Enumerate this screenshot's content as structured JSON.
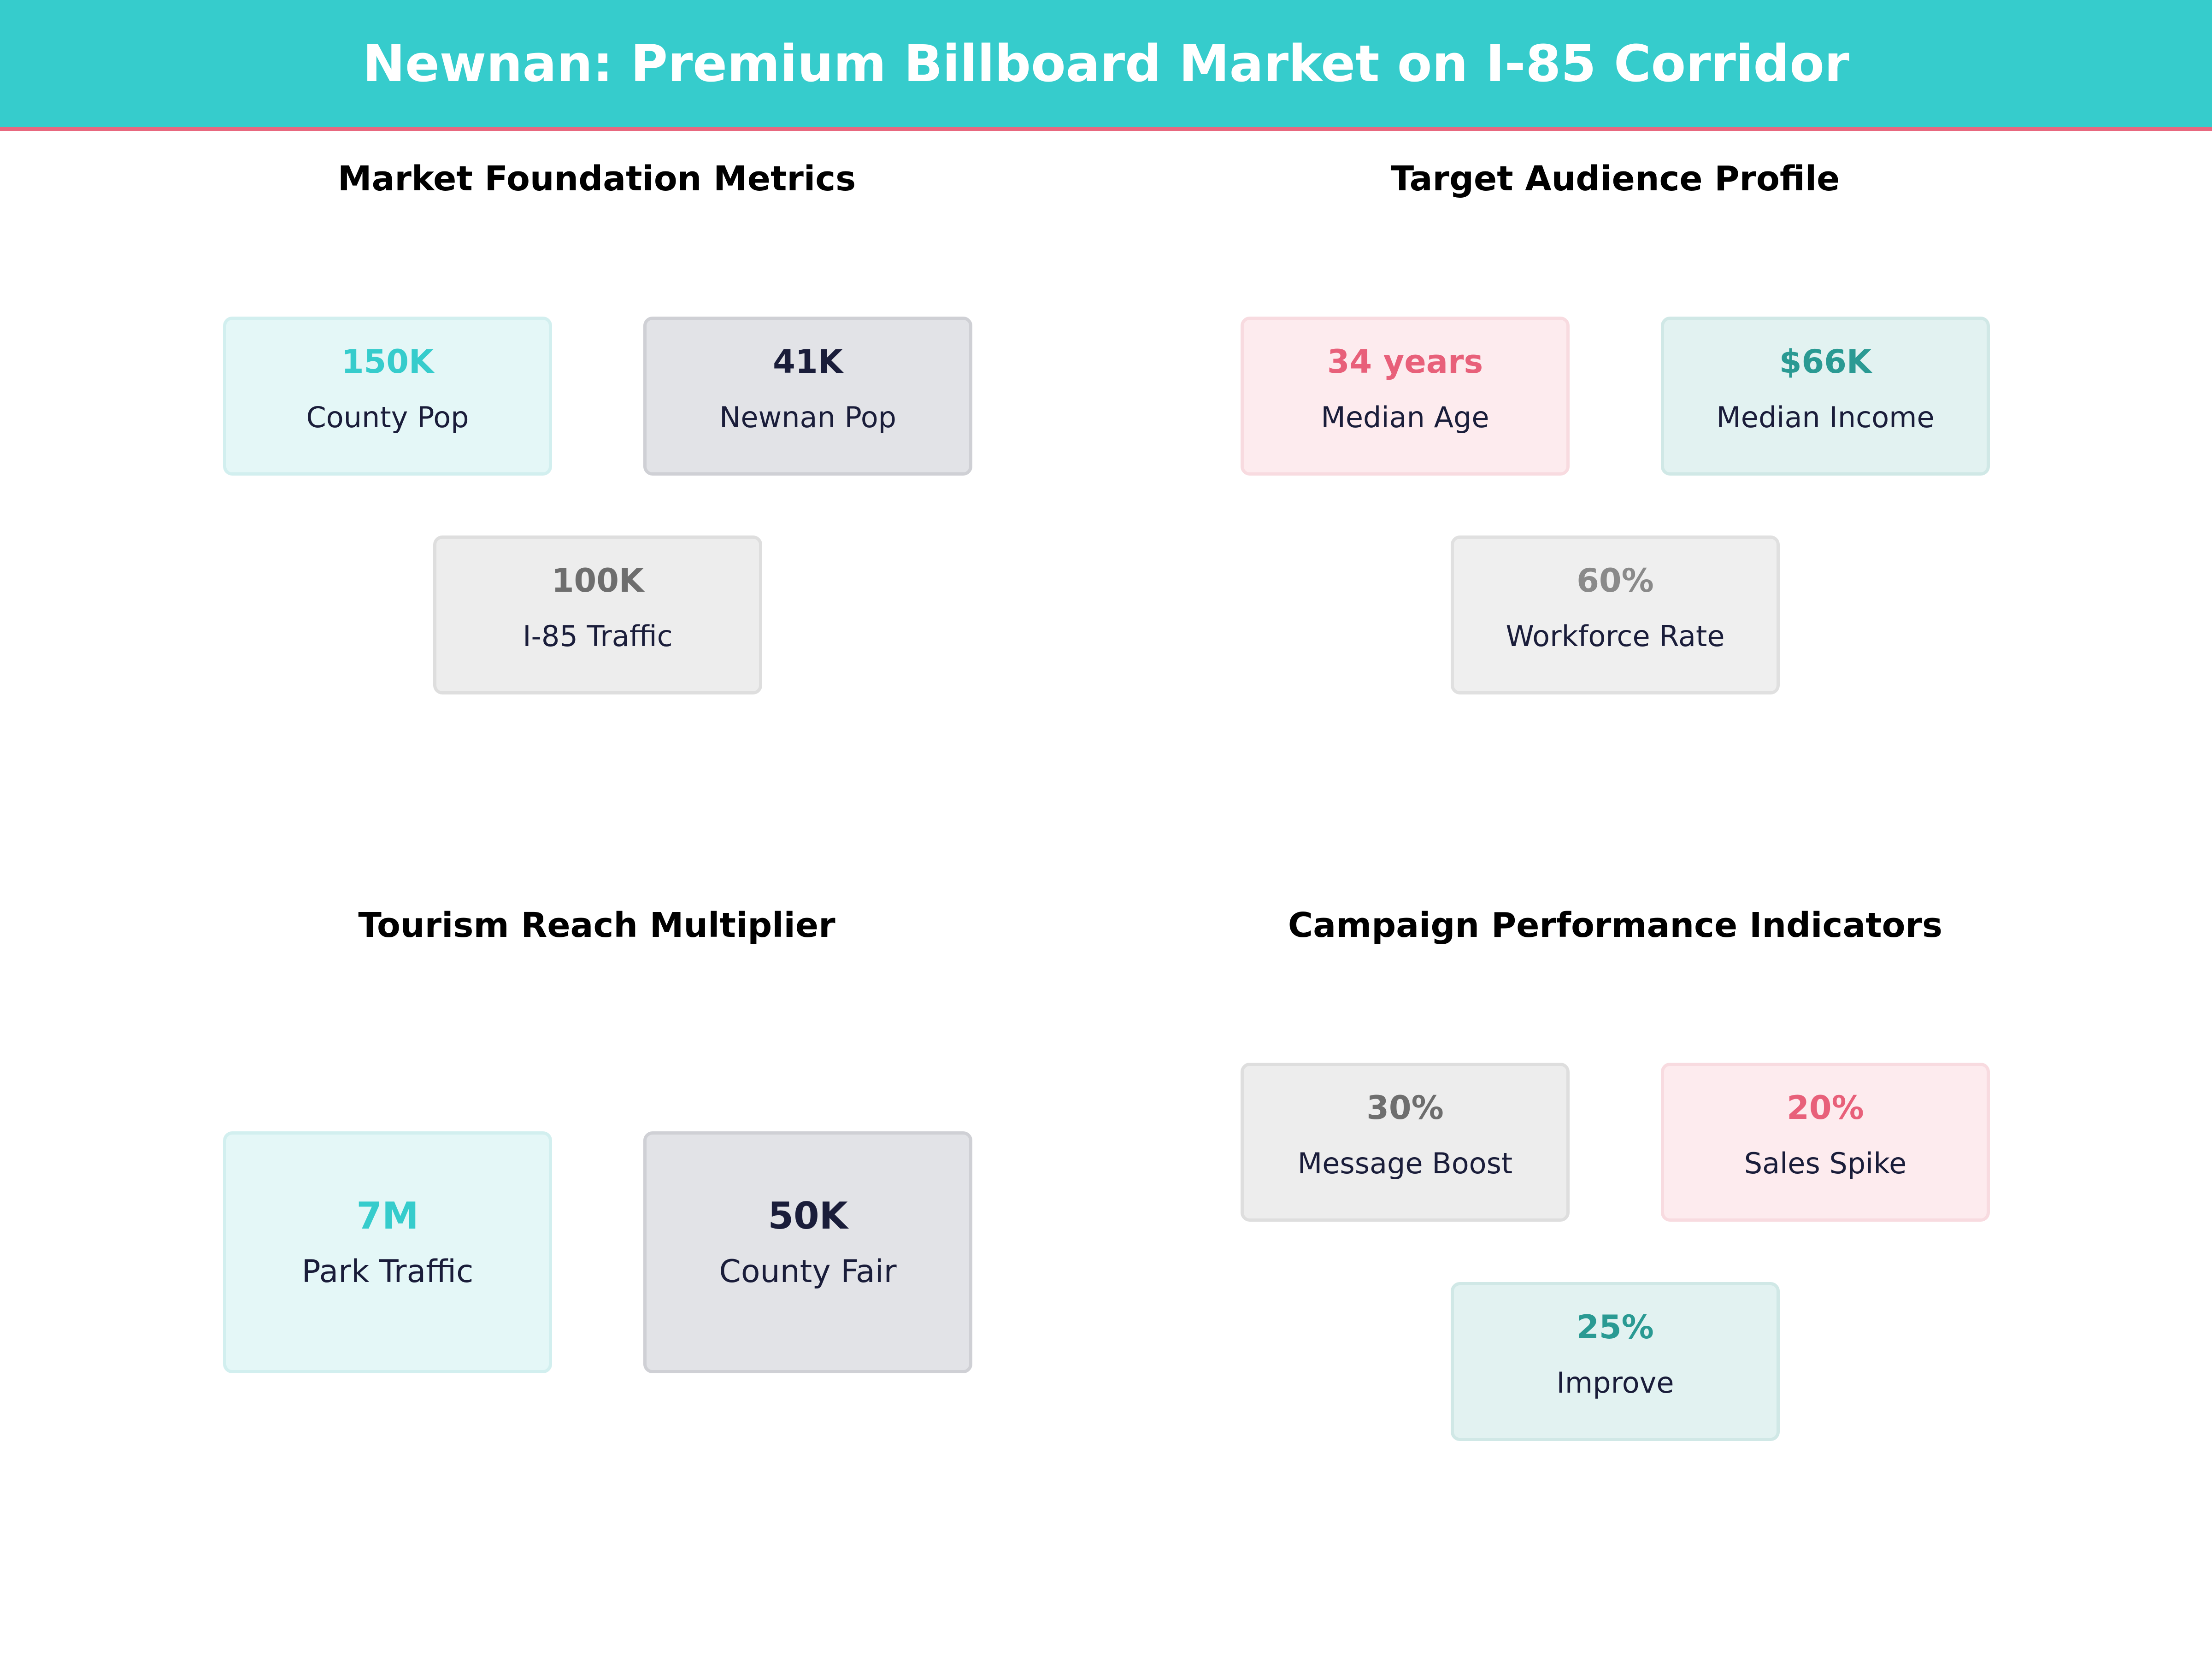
{
  "header": {
    "title": "Newnan: Premium Billboard Market on I-85 Corridor"
  },
  "colors": {
    "header_bg": "#36cccc",
    "header_accent": "#e8687f",
    "teal": "#36cccc",
    "navy": "#1a1d3a",
    "gray": "#6e6e6e",
    "pink": "#e8607a",
    "dark_teal": "#2a9a93"
  },
  "chart_data": [
    {
      "type": "table",
      "title": "Market Foundation Metrics",
      "metrics": [
        {
          "value": "150K",
          "label": "County Pop",
          "theme": "teal"
        },
        {
          "value": "41K",
          "label": "Newnan Pop",
          "theme": "navy"
        },
        {
          "value": "100K",
          "label": "I-85 Traffic",
          "theme": "gray"
        }
      ]
    },
    {
      "type": "table",
      "title": "Target Audience Profile",
      "metrics": [
        {
          "value": "34 years",
          "label": "Median Age",
          "theme": "pink"
        },
        {
          "value": "$66K",
          "label": "Median Income",
          "theme": "dteal"
        },
        {
          "value": "60%",
          "label": "Workforce Rate",
          "theme": "gray2"
        }
      ]
    },
    {
      "type": "table",
      "title": "Tourism Reach Multiplier",
      "metrics": [
        {
          "value": "7M",
          "label": "Park Traffic",
          "theme": "teal"
        },
        {
          "value": "50K",
          "label": "County Fair",
          "theme": "navy"
        }
      ]
    },
    {
      "type": "table",
      "title": "Campaign Performance Indicators",
      "metrics": [
        {
          "value": "30%",
          "label": "Message Boost",
          "theme": "gray"
        },
        {
          "value": "20%",
          "label": "Sales Spike",
          "theme": "pink"
        },
        {
          "value": "25%",
          "label": "Improve",
          "theme": "dteal"
        }
      ]
    }
  ]
}
